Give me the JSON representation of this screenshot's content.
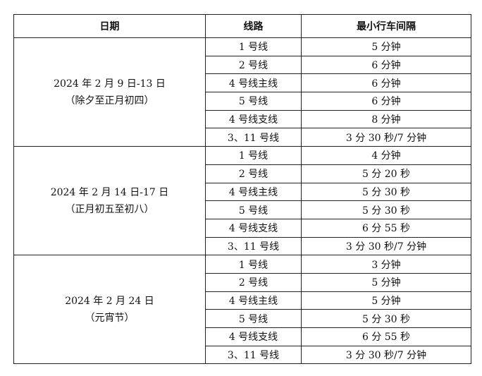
{
  "headers": [
    "日期",
    "线路",
    "最小行车间隔"
  ],
  "groups": [
    {
      "date": "2024 年 2 月 9 日-13 日",
      "note": "（除夕至正月初四）",
      "rows": [
        [
          "1 号线",
          "5 分钟"
        ],
        [
          "2 号线",
          "6 分钟"
        ],
        [
          "4 号线主线",
          "6 分钟"
        ],
        [
          "5 号线",
          "6 分钟"
        ],
        [
          "4 号线支线",
          "8 分钟"
        ],
        [
          "3、11 号线",
          "3 分 30 秒/7 分钟"
        ]
      ]
    },
    {
      "date": "2024 年 2 月 14 日-17 日",
      "note": "（正月初五至初八）",
      "rows": [
        [
          "1 号线",
          "4 分钟"
        ],
        [
          "2 号线",
          "5 分 20 秒"
        ],
        [
          "4 号线主线",
          "5 分 30 秒"
        ],
        [
          "5 号线",
          "5 分 30 秒"
        ],
        [
          "4 号线支线",
          "6 分 55 秒"
        ],
        [
          "3、11 号线",
          "3 分 30 秒/7 分钟"
        ]
      ]
    },
    {
      "date": "2024 年 2 月 24 日",
      "note": "（元宵节）",
      "rows": [
        [
          "1 号线",
          "3 分钟"
        ],
        [
          "2 号线",
          "5 分钟"
        ],
        [
          "4 号线主线",
          "5 分钟"
        ],
        [
          "5 号线",
          "5 分 30 秒"
        ],
        [
          "4 号线支线",
          "6 分 55 秒"
        ],
        [
          "3、11 号线",
          "3 分 30 秒/7 分钟"
        ]
      ]
    }
  ]
}
